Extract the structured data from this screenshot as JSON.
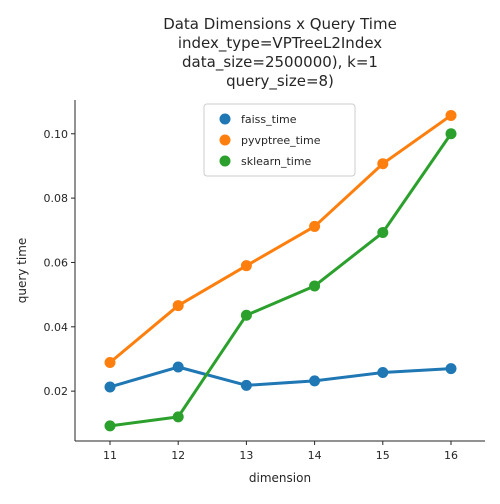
{
  "chart_data": {
    "type": "line",
    "title_lines": [
      "Data Dimensions x Query Time",
      "index_type=VPTreeL2Index",
      "data_size=2500000), k=1",
      "query_size=8)"
    ],
    "xlabel": "dimension",
    "ylabel": "query time",
    "categories": [
      "11",
      "12",
      "13",
      "14",
      "15",
      "16"
    ],
    "yticks": [
      "0.02",
      "0.04",
      "0.06",
      "0.08",
      "0.10"
    ],
    "ylim": [
      0.0045,
      0.1105
    ],
    "grid": false,
    "legend_position": "top-center",
    "series": [
      {
        "name": "faiss_time",
        "color": "#1f77b4",
        "values": [
          0.0213,
          0.0275,
          0.0218,
          0.0232,
          0.0258,
          0.027
        ]
      },
      {
        "name": "pyvptree_time",
        "color": "#ff7f0e",
        "values": [
          0.0289,
          0.0466,
          0.059,
          0.0712,
          0.0907,
          0.1057
        ]
      },
      {
        "name": "sklearn_time",
        "color": "#2ca02c",
        "values": [
          0.0092,
          0.012,
          0.0436,
          0.0527,
          0.0693,
          0.1
        ]
      }
    ]
  }
}
